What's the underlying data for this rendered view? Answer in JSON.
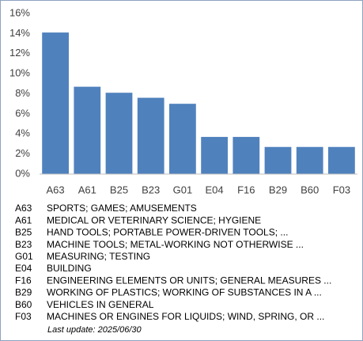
{
  "chart_data": {
    "type": "bar",
    "categories": [
      "A63",
      "A61",
      "B25",
      "B23",
      "G01",
      "E04",
      "F16",
      "B29",
      "B60",
      "F03"
    ],
    "values": [
      14.1,
      8.7,
      8.1,
      7.6,
      7.0,
      3.7,
      3.7,
      2.7,
      2.7,
      2.7
    ],
    "color": "#4f81bd",
    "ylim": [
      0,
      16
    ],
    "yticks": [
      {
        "value": 0,
        "label": "0%"
      },
      {
        "value": 2,
        "label": "2%"
      },
      {
        "value": 4,
        "label": "4%"
      },
      {
        "value": 6,
        "label": "6%"
      },
      {
        "value": 8,
        "label": "8%"
      },
      {
        "value": 10,
        "label": "10%"
      },
      {
        "value": 12,
        "label": "12%"
      },
      {
        "value": 14,
        "label": "14%"
      },
      {
        "value": 16,
        "label": "16%"
      }
    ],
    "grid": false,
    "category_descriptions": [
      "SPORTS; GAMES; AMUSEMENTS",
      "MEDICAL OR VETERINARY SCIENCE; HYGIENE",
      "HAND TOOLS; PORTABLE POWER-DRIVEN TOOLS; ...",
      "MACHINE TOOLS; METAL-WORKING NOT OTHERWISE ...",
      "MEASURING; TESTING",
      "BUILDING",
      "ENGINEERING ELEMENTS OR UNITS; GENERAL MEASURES ...",
      "WORKING OF PLASTICS; WORKING OF SUBSTANCES IN A ...",
      "VEHICLES IN GENERAL",
      "MACHINES OR ENGINES FOR LIQUIDS; WIND, SPRING, OR ..."
    ],
    "footnote": "Last update:  2025/06/30"
  }
}
